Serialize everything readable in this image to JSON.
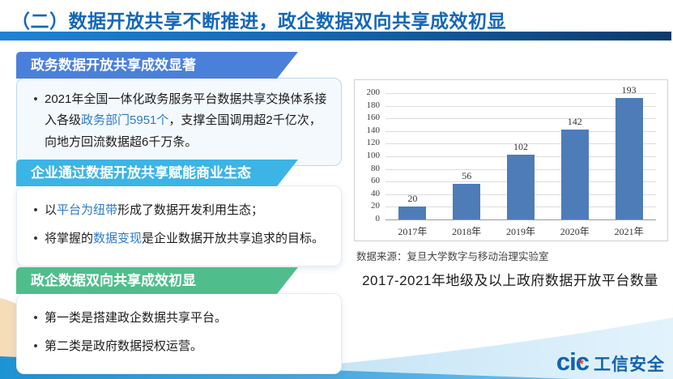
{
  "slide": {
    "title": "（二）数据开放共享不断推进，政企数据双向共享成效初显"
  },
  "sections": [
    {
      "header": "政务数据开放共享成效显著",
      "accent": "#4b80da",
      "bullets": [
        {
          "segments": [
            {
              "t": "2021年全国一体化政务服务平台数据共享交换体系接入各级",
              "hl": false
            },
            {
              "t": "政务部门5951个",
              "hl": true
            },
            {
              "t": "，支撑全国调用超2千亿次，向地方回流数据超6千万条。",
              "hl": false
            }
          ]
        }
      ]
    },
    {
      "header": "企业通过数据开放共享赋能商业生态",
      "accent": "#3cb4e5",
      "bullets": [
        {
          "segments": [
            {
              "t": "以",
              "hl": false
            },
            {
              "t": "平台为纽带",
              "hl": true
            },
            {
              "t": "形成了数据开发利用生态；",
              "hl": false
            }
          ]
        },
        {
          "segments": [
            {
              "t": "将掌握的",
              "hl": false
            },
            {
              "t": "数据变现",
              "hl": true
            },
            {
              "t": "是企业数据开放共享追求的目标。",
              "hl": false
            }
          ]
        }
      ]
    },
    {
      "header": "政企数据双向共享成效初显",
      "accent": "#4fbe8c",
      "bullets": [
        {
          "segments": [
            {
              "t": "第一类是搭建政企数据共享平台。",
              "hl": false
            }
          ]
        },
        {
          "segments": [
            {
              "t": "第二类是政府数据授权运营。",
              "hl": false
            }
          ]
        }
      ]
    }
  ],
  "chart_data": {
    "type": "bar",
    "categories": [
      "2017年",
      "2018年",
      "2019年",
      "2020年",
      "2021年"
    ],
    "values": [
      20,
      56,
      102,
      142,
      193
    ],
    "title": "2017-2021年地级及以上政府数据开放平台数量",
    "source": "数据来源：复旦大学数字与移动治理实验室",
    "xlabel": "",
    "ylabel": "",
    "ylim": [
      0,
      200
    ],
    "ytick_step": 20,
    "bar_color": "#4e7cb8",
    "grid": true,
    "legend": false
  },
  "logo": {
    "latin": "cic",
    "cn": "工信安全",
    "color": "#0f62b0",
    "star_color": "#e8392b"
  },
  "colors": {
    "title": "#1467b8",
    "highlight": "#2e7bc9",
    "rule_start": "#1f83d4",
    "rule_end": "#0c3a6c"
  }
}
